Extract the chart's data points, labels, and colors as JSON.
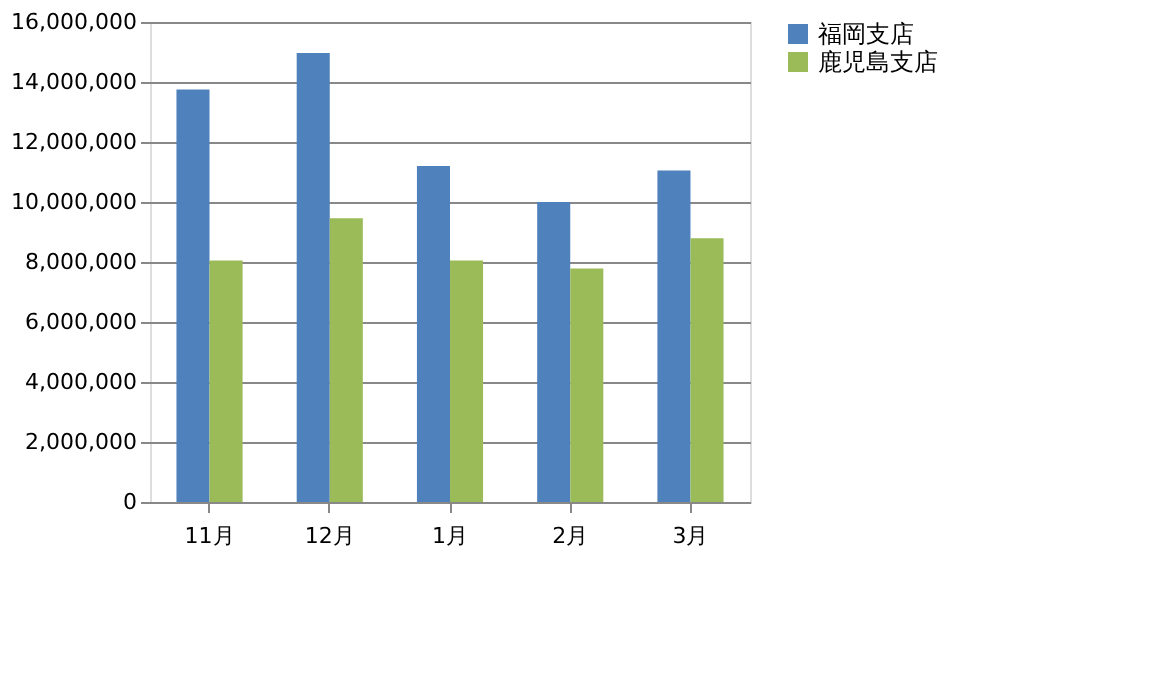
{
  "chart_data": {
    "type": "bar",
    "categories": [
      "11月",
      "12月",
      "1月",
      "2月",
      "3月"
    ],
    "series": [
      {
        "name": "福岡支店",
        "color": "#4f81bd",
        "values": [
          13750000,
          14970000,
          11200000,
          10000000,
          11050000
        ]
      },
      {
        "name": "鹿児島支店",
        "color": "#9bbb59",
        "values": [
          8050000,
          9460000,
          8050000,
          7780000,
          8790000
        ]
      }
    ],
    "ylim": [
      0,
      16000000
    ],
    "yticks": [
      0,
      {
        "value": 2000000,
        "label": "2,000,000"
      },
      {
        "value": 4000000,
        "label": "4,000,000"
      },
      {
        "value": 6000000,
        "label": "6,000,000"
      },
      {
        "value": 8000000,
        "label": "8,000,000"
      },
      {
        "value": 10000000,
        "label": "10,000,000"
      },
      {
        "value": 12000000,
        "label": "12,000,000"
      },
      {
        "value": 14000000,
        "label": "14,000,000"
      },
      {
        "value": 16000000,
        "label": "16,000,000"
      }
    ],
    "grid": "y",
    "legend": "right"
  }
}
